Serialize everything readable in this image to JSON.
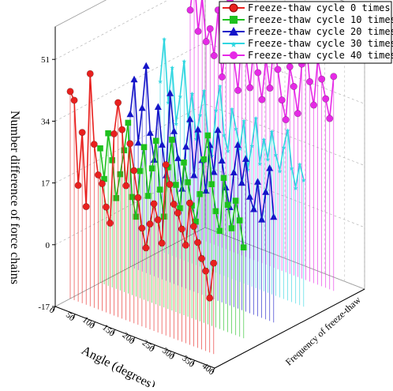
{
  "chart_data": {
    "type": "line",
    "title": "",
    "xlabel": "Angle (degrees)",
    "ylabel": "Frequency of freeze-thaw",
    "zlabel": "Number difference of force chains",
    "x_ticks": [
      "0",
      "50",
      "100",
      "150",
      "200",
      "250",
      "300",
      "350",
      "400"
    ],
    "z_ticks": [
      "-17",
      "0",
      "17",
      "34",
      "51"
    ],
    "xlim": [
      0,
      400
    ],
    "zlim": [
      -17,
      60
    ],
    "legend_position": "top-right",
    "grid": true,
    "series": [
      {
        "name": "Freeze-thaw cycle 0 times",
        "color": "#e8201e",
        "marker": "circle",
        "x": [
          0,
          10,
          20,
          30,
          40,
          50,
          60,
          70,
          80,
          90,
          100,
          110,
          120,
          130,
          140,
          150,
          160,
          170,
          180,
          190,
          200,
          210,
          220,
          230,
          240,
          250,
          260,
          270,
          280,
          290,
          300,
          310,
          320,
          330,
          340,
          350,
          360
        ],
        "y": [
          40,
          38,
          15,
          30,
          10,
          47,
          28,
          20,
          18,
          12,
          8,
          33,
          42,
          35,
          20,
          32,
          25,
          18,
          10,
          5,
          12,
          18,
          14,
          8,
          30,
          25,
          20,
          18,
          14,
          10,
          22,
          16,
          12,
          8,
          5,
          -2,
          8
        ]
      },
      {
        "name": "Freeze-thaw cycle 10 times",
        "color": "#1ec01e",
        "marker": "square",
        "x": [
          0,
          10,
          20,
          30,
          40,
          50,
          60,
          70,
          80,
          90,
          100,
          110,
          120,
          130,
          140,
          150,
          160,
          170,
          180,
          190,
          200,
          210,
          220,
          230,
          240,
          250,
          260,
          270,
          280,
          290,
          300,
          310,
          320,
          330,
          340,
          350,
          360
        ],
        "y": [
          20,
          12,
          25,
          18,
          8,
          15,
          22,
          30,
          10,
          5,
          18,
          25,
          12,
          20,
          28,
          15,
          8,
          22,
          30,
          18,
          12,
          25,
          20,
          14,
          10,
          18,
          28,
          35,
          22,
          15,
          10,
          25,
          18,
          12,
          20,
          15,
          8
        ]
      },
      {
        "name": "Freeze-thaw cycle 20 times",
        "color": "#1515c8",
        "marker": "triangle",
        "x": [
          0,
          10,
          20,
          30,
          40,
          50,
          60,
          70,
          80,
          90,
          100,
          110,
          120,
          130,
          140,
          150,
          160,
          170,
          180,
          190,
          200,
          210,
          220,
          230,
          240,
          250,
          260,
          270,
          280,
          290,
          300,
          310,
          320,
          330,
          340,
          350,
          360
        ],
        "y": [
          25,
          35,
          18,
          28,
          40,
          22,
          15,
          30,
          20,
          12,
          35,
          25,
          18,
          10,
          22,
          30,
          15,
          28,
          20,
          12,
          25,
          18,
          30,
          22,
          15,
          10,
          20,
          28,
          18,
          25,
          15,
          12,
          20,
          10,
          18,
          25,
          12
        ]
      },
      {
        "name": "Freeze-thaw cycle 30 times",
        "color": "#2fd6e0",
        "marker": "star",
        "x": [
          0,
          10,
          20,
          30,
          40,
          50,
          60,
          70,
          80,
          90,
          100,
          110,
          120,
          130,
          140,
          150,
          160,
          170,
          180,
          190,
          200,
          210,
          220,
          230,
          240,
          250,
          260,
          270,
          280,
          290,
          300,
          310,
          320,
          330,
          340,
          350,
          360
        ],
        "y": [
          30,
          42,
          25,
          35,
          20,
          28,
          38,
          22,
          30,
          18,
          25,
          32,
          20,
          15,
          28,
          35,
          22,
          18,
          30,
          25,
          20,
          28,
          15,
          22,
          30,
          18,
          25,
          20,
          28,
          22,
          18,
          25,
          30,
          20,
          15,
          22,
          18
        ]
      },
      {
        "name": "Freeze-thaw cycle 40 times",
        "color": "#e629e6",
        "marker": "circle",
        "x": [
          0,
          10,
          20,
          30,
          40,
          50,
          60,
          70,
          80,
          90,
          100,
          110,
          120,
          130,
          140,
          150,
          160,
          170,
          180,
          190,
          200,
          210,
          220,
          230,
          240,
          250,
          260,
          270,
          280,
          290,
          300,
          310,
          320,
          330,
          340,
          350,
          360
        ],
        "y": [
          45,
          55,
          40,
          50,
          38,
          42,
          35,
          48,
          30,
          40,
          52,
          36,
          28,
          44,
          38,
          30,
          42,
          35,
          28,
          40,
          32,
          45,
          38,
          30,
          25,
          40,
          35,
          28,
          42,
          50,
          38,
          32,
          45,
          40,
          35,
          30,
          42
        ]
      }
    ]
  }
}
